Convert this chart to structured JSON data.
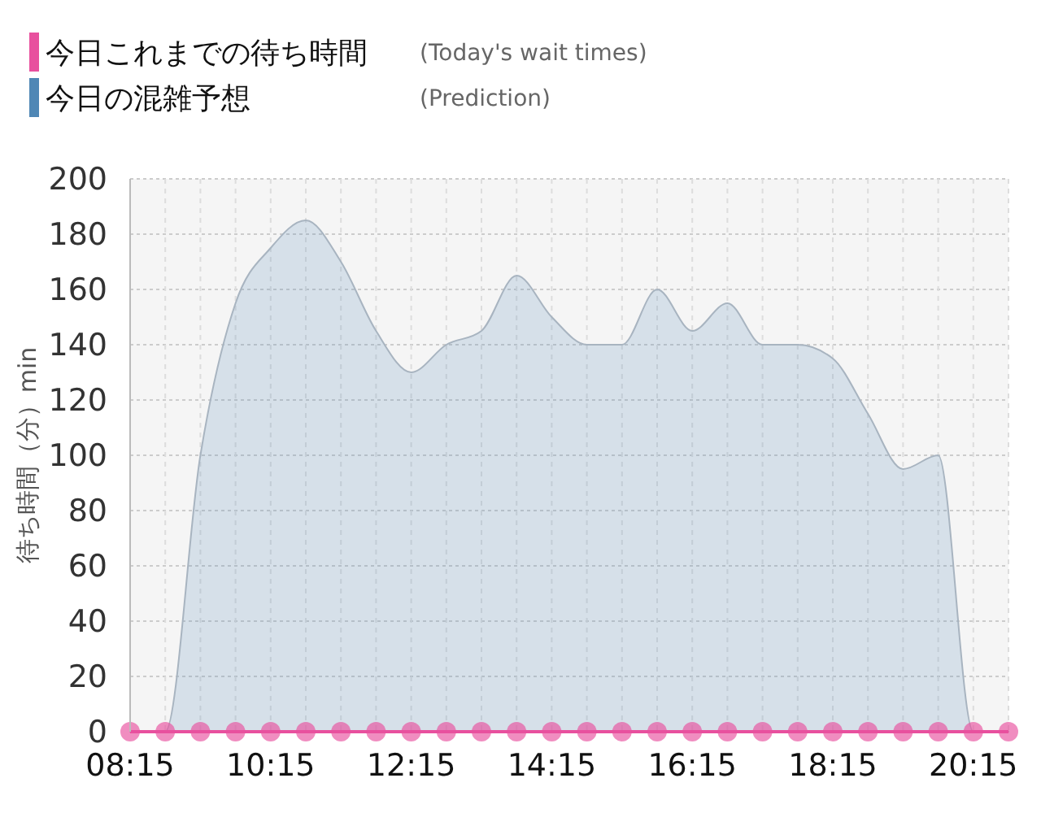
{
  "chart_data": {
    "type": "line",
    "ylabel": "待ち時間（分）min",
    "x": [
      8.25,
      8.75,
      9.25,
      9.75,
      10.25,
      10.75,
      11.25,
      11.75,
      12.25,
      12.75,
      13.25,
      13.75,
      14.25,
      14.75,
      15.25,
      15.75,
      16.25,
      16.75,
      17.25,
      17.75,
      18.25,
      18.75,
      19.25,
      19.75,
      20.25,
      20.75
    ],
    "series": [
      {
        "name": "今日の混雑予想",
        "type": "area",
        "color": "#4f87b5",
        "values": [
          0,
          0,
          100,
          155,
          175,
          185,
          170,
          145,
          130,
          140,
          145,
          165,
          150,
          140,
          140,
          160,
          145,
          155,
          140,
          140,
          135,
          115,
          95,
          100,
          0,
          0
        ]
      },
      {
        "name": "今日これまでの待ち時間",
        "color": "#e8509e",
        "marker": "circle",
        "values": [
          0,
          0,
          0,
          0,
          0,
          0,
          0,
          0,
          0,
          0,
          0,
          0,
          0,
          0,
          0,
          0,
          0,
          0,
          0,
          0,
          0,
          0,
          0,
          0,
          0,
          0
        ]
      }
    ],
    "xlim": [
      8.25,
      20.75
    ],
    "xticks": [
      {
        "value": 8.25,
        "label": "08:15"
      },
      {
        "value": 10.25,
        "label": "10:15"
      },
      {
        "value": 12.25,
        "label": "12:15"
      },
      {
        "value": 14.25,
        "label": "14:15"
      },
      {
        "value": 16.25,
        "label": "16:15"
      },
      {
        "value": 18.25,
        "label": "18:15"
      },
      {
        "value": 20.25,
        "label": "20:15"
      }
    ],
    "ylim": [
      0,
      200
    ],
    "yticks": [
      0,
      20,
      40,
      60,
      80,
      100,
      120,
      140,
      160,
      180,
      200
    ],
    "grid": true,
    "legend": "top left",
    "annotations": [
      "(Prediction)",
      "(Today's wait times)"
    ]
  }
}
